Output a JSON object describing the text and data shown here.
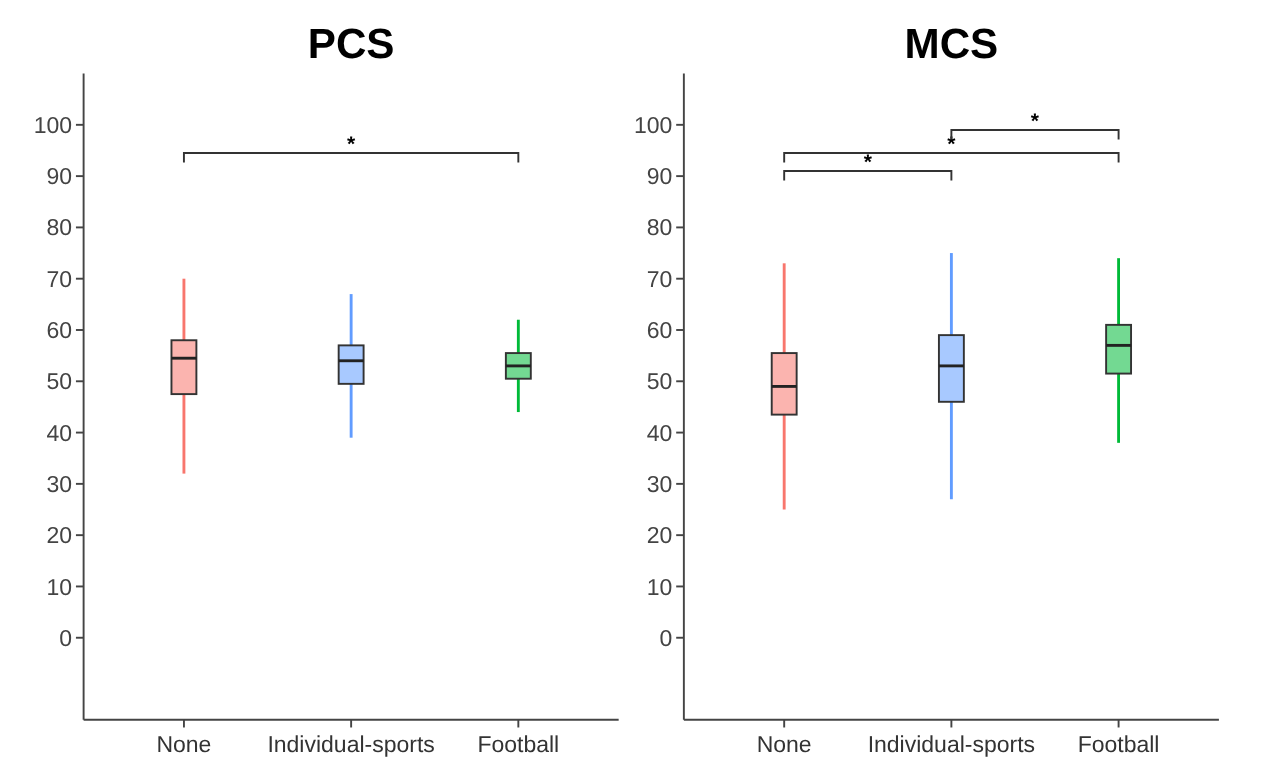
{
  "chart_data": [
    {
      "type": "box",
      "title": "PCS",
      "categories": [
        "None",
        "Individual-sports",
        "Football"
      ],
      "colors": [
        "#f8766d",
        "#619cff",
        "#00ba38"
      ],
      "ylim": [
        -16,
        110
      ],
      "yticks": [
        0,
        10,
        20,
        30,
        40,
        50,
        60,
        70,
        80,
        90,
        100
      ],
      "grid": false,
      "annotations": [
        "*"
      ],
      "boxes": [
        {
          "low": 32,
          "q1": 47.5,
          "median": 54.5,
          "q3": 58,
          "high": 70
        },
        {
          "low": 39,
          "q1": 49.5,
          "median": 54,
          "q3": 57,
          "high": 67
        },
        {
          "low": 44,
          "q1": 50.5,
          "median": 53,
          "q3": 55.5,
          "high": 62
        }
      ]
    },
    {
      "type": "box",
      "title": "MCS",
      "categories": [
        "None",
        "Individual-sports",
        "Football"
      ],
      "colors": [
        "#f8766d",
        "#619cff",
        "#00ba38"
      ],
      "ylim": [
        -16,
        110
      ],
      "yticks": [
        0,
        10,
        20,
        30,
        40,
        50,
        60,
        70,
        80,
        90,
        100
      ],
      "grid": false,
      "annotations": [
        "*",
        "*",
        "*"
      ],
      "boxes": [
        {
          "low": 25,
          "q1": 43.5,
          "median": 49,
          "q3": 55.5,
          "high": 73
        },
        {
          "low": 27,
          "q1": 46,
          "median": 53,
          "q3": 59,
          "high": 75
        },
        {
          "low": 38,
          "q1": 51.5,
          "median": 57,
          "q3": 61,
          "high": 74
        }
      ]
    }
  ]
}
